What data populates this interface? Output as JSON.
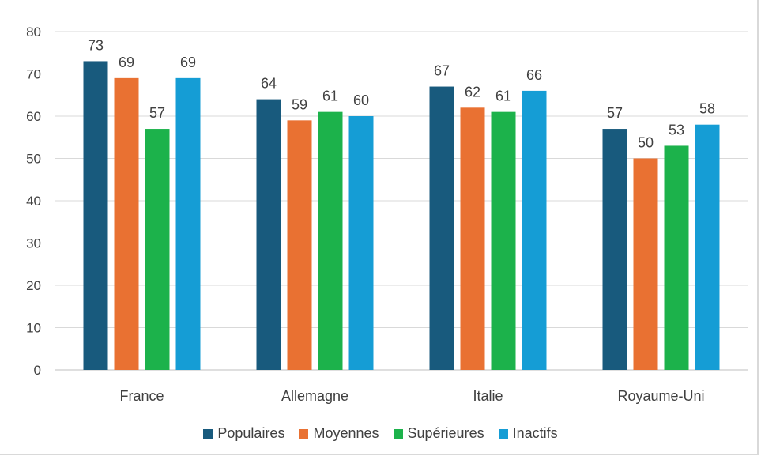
{
  "chart_data": {
    "type": "bar",
    "categories": [
      "France",
      "Allemagne",
      "Italie",
      "Royaume-Uni"
    ],
    "series": [
      {
        "name": "Populaires",
        "color": "#185a7d",
        "values": [
          73,
          64,
          67,
          57
        ]
      },
      {
        "name": "Moyennes",
        "color": "#e97132",
        "values": [
          69,
          59,
          62,
          50
        ]
      },
      {
        "name": "Supérieures",
        "color": "#1cb24b",
        "values": [
          57,
          61,
          61,
          53
        ]
      },
      {
        "name": "Inactifs",
        "color": "#159dd5",
        "values": [
          69,
          60,
          66,
          58
        ]
      }
    ],
    "yticks": [
      0,
      10,
      20,
      30,
      40,
      50,
      60,
      70,
      80
    ],
    "ylim": [
      0,
      80
    ],
    "grid": true,
    "legend_position": "bottom",
    "data_labels": true
  }
}
